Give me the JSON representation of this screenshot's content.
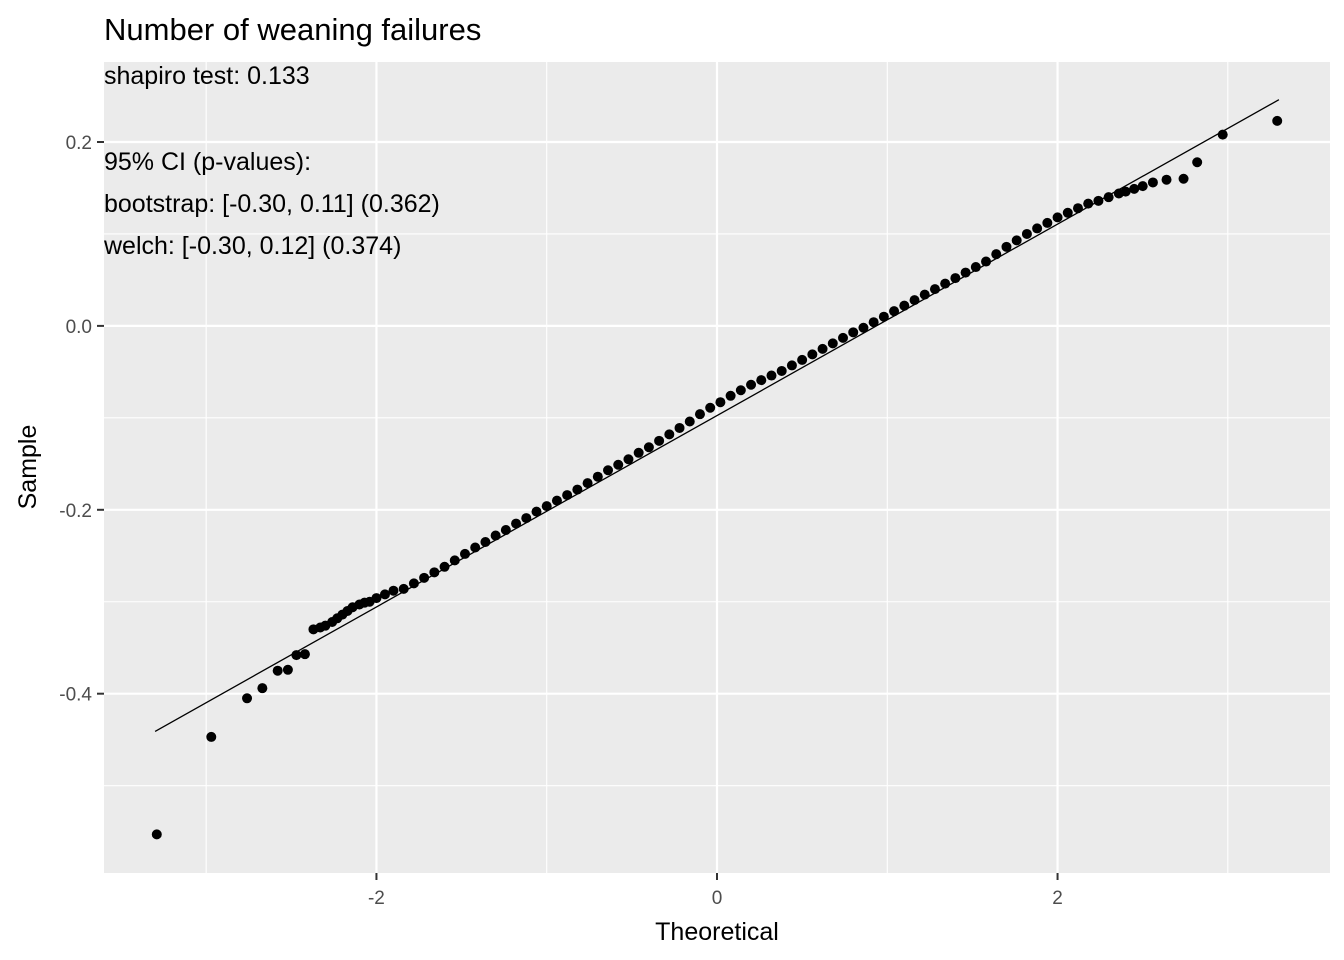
{
  "chart_data": {
    "type": "scatter",
    "title": "Number of weaning failures",
    "annotations": [
      "shapiro test: 0.133",
      "",
      "95% CI (p-values):",
      "bootstrap: [-0.30, 0.11] (0.362)",
      "welch: [-0.30, 0.12] (0.374)"
    ],
    "xlabel": "Theoretical",
    "ylabel": "Sample",
    "xlim": [
      -3.6,
      3.6
    ],
    "ylim": [
      -0.595,
      0.287
    ],
    "x_ticks": [
      -2,
      0,
      2
    ],
    "x_tick_labels": [
      "-2",
      "0",
      "2"
    ],
    "y_ticks": [
      -0.4,
      -0.2,
      0.0,
      0.2
    ],
    "y_tick_labels": [
      "-0.4",
      "-0.2",
      "0.0",
      "0.2"
    ],
    "grid": true,
    "background": "#ebebeb",
    "grid_color": "#ffffff",
    "point_color": "#000000",
    "reference_line": {
      "x": [
        -3.3,
        3.3
      ],
      "y": [
        -0.441,
        0.246
      ]
    },
    "points": {
      "x": [
        -3.29,
        -2.97,
        -2.76,
        -2.67,
        -2.58,
        -2.52,
        -2.47,
        -2.42,
        -2.37,
        -2.33,
        -2.3,
        -2.26,
        -2.23,
        -2.2,
        -2.17,
        -2.14,
        -2.1,
        -2.07,
        -2.04,
        -2.0,
        -1.95,
        -1.9,
        -1.84,
        -1.78,
        -1.72,
        -1.66,
        -1.6,
        -1.54,
        -1.48,
        -1.42,
        -1.36,
        -1.3,
        -1.24,
        -1.18,
        -1.12,
        -1.06,
        -1.0,
        -0.94,
        -0.88,
        -0.82,
        -0.76,
        -0.7,
        -0.64,
        -0.58,
        -0.52,
        -0.46,
        -0.4,
        -0.34,
        -0.28,
        -0.22,
        -0.16,
        -0.1,
        -0.04,
        0.02,
        0.08,
        0.14,
        0.2,
        0.26,
        0.32,
        0.38,
        0.44,
        0.5,
        0.56,
        0.62,
        0.68,
        0.74,
        0.8,
        0.86,
        0.92,
        0.98,
        1.04,
        1.1,
        1.16,
        1.22,
        1.28,
        1.34,
        1.4,
        1.46,
        1.52,
        1.58,
        1.64,
        1.7,
        1.76,
        1.82,
        1.88,
        1.94,
        2.0,
        2.06,
        2.12,
        2.18,
        2.24,
        2.3,
        2.36,
        2.4,
        2.45,
        2.5,
        2.56,
        2.64,
        2.74,
        2.82,
        2.97,
        3.29
      ],
      "y": [
        -0.553,
        -0.447,
        -0.405,
        -0.394,
        -0.375,
        -0.374,
        -0.358,
        -0.357,
        -0.33,
        -0.328,
        -0.326,
        -0.322,
        -0.318,
        -0.314,
        -0.31,
        -0.306,
        -0.303,
        -0.301,
        -0.3,
        -0.296,
        -0.292,
        -0.288,
        -0.286,
        -0.28,
        -0.274,
        -0.268,
        -0.262,
        -0.255,
        -0.248,
        -0.241,
        -0.235,
        -0.228,
        -0.222,
        -0.215,
        -0.209,
        -0.202,
        -0.196,
        -0.19,
        -0.184,
        -0.178,
        -0.171,
        -0.164,
        -0.157,
        -0.151,
        -0.145,
        -0.138,
        -0.132,
        -0.125,
        -0.118,
        -0.111,
        -0.104,
        -0.096,
        -0.089,
        -0.083,
        -0.076,
        -0.07,
        -0.064,
        -0.059,
        -0.054,
        -0.049,
        -0.043,
        -0.037,
        -0.031,
        -0.025,
        -0.019,
        -0.013,
        -0.007,
        -0.002,
        0.004,
        0.01,
        0.016,
        0.022,
        0.028,
        0.034,
        0.04,
        0.046,
        0.052,
        0.058,
        0.064,
        0.07,
        0.078,
        0.086,
        0.093,
        0.1,
        0.106,
        0.112,
        0.118,
        0.123,
        0.128,
        0.133,
        0.136,
        0.14,
        0.144,
        0.146,
        0.149,
        0.152,
        0.156,
        0.159,
        0.16,
        0.178,
        0.208,
        0.223
      ]
    }
  }
}
